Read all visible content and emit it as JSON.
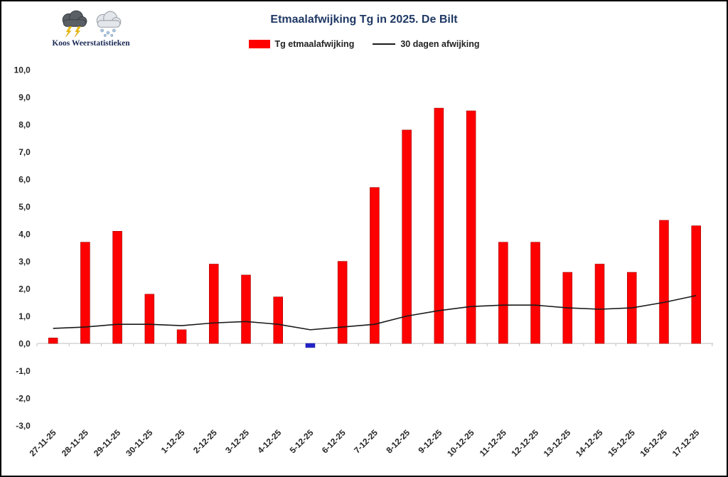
{
  "page": {
    "background": "#ffffff",
    "border_color": "#000000"
  },
  "branding": {
    "name": "Koos Weerstatistieken",
    "icons": [
      "storm-cloud-icon",
      "snow-cloud-icon"
    ]
  },
  "chart_data": {
    "type": "bar",
    "title": "Etmaalafwijking Tg in 2025. De Bilt",
    "title_color": "#1f3864",
    "legend_position": "top",
    "grid": false,
    "ylim": [
      -3,
      10
    ],
    "categories": [
      "27-11-25",
      "28-11-25",
      "29-11-25",
      "30-11-25",
      "1-12-25",
      "2-12-25",
      "3-12-25",
      "4-12-25",
      "5-12-25",
      "6-12-25",
      "7-12-25",
      "8-12-25",
      "9-12-25",
      "10-12-25",
      "11-12-25",
      "12-12-25",
      "13-12-25",
      "14-12-25",
      "15-12-25",
      "16-12-25",
      "17-12-25"
    ],
    "series": [
      {
        "name": "Tg etmaalafwijking",
        "type": "bar",
        "color": "#ff0000",
        "negative_color": "#2323cc",
        "values": [
          0.2,
          3.7,
          4.1,
          1.8,
          0.5,
          2.9,
          2.5,
          1.7,
          -0.15,
          3.0,
          5.7,
          7.8,
          8.6,
          8.5,
          3.7,
          3.7,
          2.6,
          2.9,
          2.6,
          4.5,
          4.3
        ]
      },
      {
        "name": "30 dagen afwijking",
        "type": "line",
        "color": "#1a1a1a",
        "values": [
          0.55,
          0.6,
          0.7,
          0.7,
          0.65,
          0.75,
          0.8,
          0.7,
          0.5,
          0.6,
          0.7,
          1.0,
          1.2,
          1.35,
          1.4,
          1.4,
          1.3,
          1.25,
          1.3,
          1.5,
          1.75
        ]
      }
    ],
    "y_ticks": [
      {
        "label": "10,0",
        "value": 10
      },
      {
        "label": "9,0",
        "value": 9
      },
      {
        "label": "8,0",
        "value": 8
      },
      {
        "label": "7,0",
        "value": 7
      },
      {
        "label": "6,0",
        "value": 6
      },
      {
        "label": "5,0",
        "value": 5
      },
      {
        "label": "4,0",
        "value": 4
      },
      {
        "label": "3,0",
        "value": 3
      },
      {
        "label": "2,0",
        "value": 2
      },
      {
        "label": "1,0",
        "value": 1
      },
      {
        "label": "0,0",
        "value": 0
      },
      {
        "label": "-1,0",
        "value": -1
      },
      {
        "label": "-2,0",
        "value": -2
      },
      {
        "label": "-3,0",
        "value": -3
      }
    ]
  }
}
